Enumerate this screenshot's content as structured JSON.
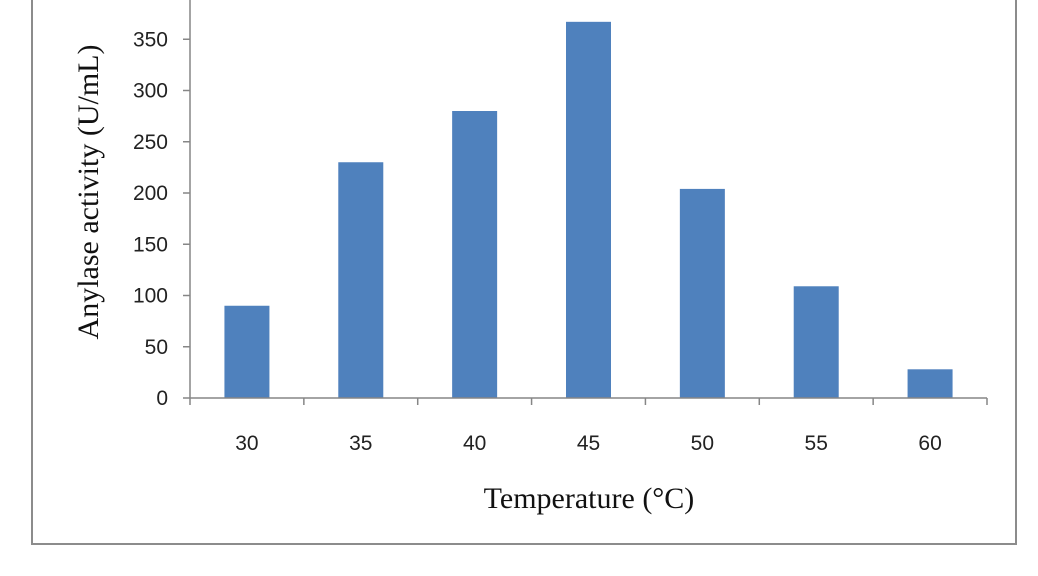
{
  "chart_data": {
    "type": "bar",
    "categories": [
      "30",
      "35",
      "40",
      "45",
      "50",
      "55",
      "60"
    ],
    "series": [
      {
        "values": [
          90,
          230,
          280,
          367,
          204,
          109,
          28
        ]
      }
    ],
    "xlabel": "Temperature (°C)",
    "ylabel": "Anylase activity (U/mL)",
    "ylim": [
      0,
      400
    ],
    "yticks": [
      0,
      50,
      100,
      150,
      200,
      250,
      300,
      350
    ],
    "grid": false,
    "legend": "none",
    "bar_color": "#4f81bd",
    "axis_color": "#868686"
  }
}
